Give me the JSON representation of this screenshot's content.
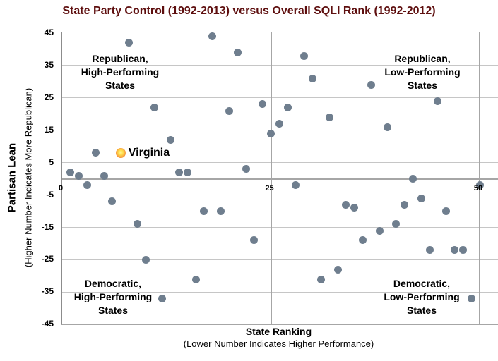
{
  "title": "State Party Control (1992-2013) versus Overall SQLI Rank (1992-2012)",
  "y_axis": {
    "title": "Partisan Lean",
    "subtitle": "(Higher Number Indicates More Republican)",
    "ticks": [
      45,
      35,
      25,
      15,
      5,
      -5,
      -15,
      -25,
      -35,
      -45
    ]
  },
  "x_axis": {
    "title": "State Ranking",
    "subtitle": "(Lower Number Indicates Higher Performance)",
    "ticks": [
      0,
      25,
      50
    ]
  },
  "quadrant_labels": {
    "top_left": "Republican,\nHigh-Performing\nStates",
    "top_right": "Republican,\nLow-Performing\nStates",
    "bottom_left": "Democratic,\nHigh-Performing\nStates",
    "bottom_right": "Democratic,\nLow-Performing\nStates"
  },
  "colors": {
    "title": "#5e0f0f",
    "dot": "#6f7e8e",
    "gridline": "#c6c6c6",
    "axis_line": "#a6a6a6",
    "highlight_outer": "#ee7d1a",
    "highlight_inner": "#ffe14d"
  },
  "chart_data": {
    "type": "scatter",
    "title": "State Party Control (1992-2013) versus Overall SQLI Rank (1992-2012)",
    "xlabel": "State Ranking (Lower Number Indicates Higher Performance)",
    "ylabel": "Partisan Lean (Higher Number Indicates More Republican)",
    "xlim": [
      0,
      52
    ],
    "ylim": [
      -45,
      45
    ],
    "grid": true,
    "legend": false,
    "points": [
      {
        "rank": 1,
        "lean": 2
      },
      {
        "rank": 2,
        "lean": 1
      },
      {
        "rank": 3,
        "lean": -2
      },
      {
        "rank": 4,
        "lean": 8
      },
      {
        "rank": 5,
        "lean": 1
      },
      {
        "rank": 6,
        "lean": -7
      },
      {
        "rank": 7,
        "lean": 8
      },
      {
        "rank": 8,
        "lean": 42
      },
      {
        "rank": 9,
        "lean": -14
      },
      {
        "rank": 10,
        "lean": -25
      },
      {
        "rank": 11,
        "lean": 22
      },
      {
        "rank": 12,
        "lean": -37
      },
      {
        "rank": 13,
        "lean": 12
      },
      {
        "rank": 14,
        "lean": 2
      },
      {
        "rank": 15,
        "lean": 2
      },
      {
        "rank": 16,
        "lean": -31
      },
      {
        "rank": 17,
        "lean": -10
      },
      {
        "rank": 18,
        "lean": 44
      },
      {
        "rank": 19,
        "lean": -10
      },
      {
        "rank": 20,
        "lean": 21
      },
      {
        "rank": 21,
        "lean": 39
      },
      {
        "rank": 22,
        "lean": 3
      },
      {
        "rank": 23,
        "lean": -19
      },
      {
        "rank": 24,
        "lean": 23
      },
      {
        "rank": 25,
        "lean": 14
      },
      {
        "rank": 26,
        "lean": 17
      },
      {
        "rank": 27,
        "lean": 22
      },
      {
        "rank": 28,
        "lean": -2
      },
      {
        "rank": 29,
        "lean": 38
      },
      {
        "rank": 30,
        "lean": 31
      },
      {
        "rank": 31,
        "lean": -31
      },
      {
        "rank": 32,
        "lean": 19
      },
      {
        "rank": 33,
        "lean": -28
      },
      {
        "rank": 34,
        "lean": -8
      },
      {
        "rank": 35,
        "lean": -9
      },
      {
        "rank": 36,
        "lean": -19
      },
      {
        "rank": 37,
        "lean": 29
      },
      {
        "rank": 38,
        "lean": -16
      },
      {
        "rank": 39,
        "lean": 16
      },
      {
        "rank": 40,
        "lean": -14
      },
      {
        "rank": 41,
        "lean": -8
      },
      {
        "rank": 42,
        "lean": 0
      },
      {
        "rank": 43,
        "lean": -6
      },
      {
        "rank": 44,
        "lean": -22
      },
      {
        "rank": 45,
        "lean": 24
      },
      {
        "rank": 46,
        "lean": -10
      },
      {
        "rank": 47,
        "lean": -22
      },
      {
        "rank": 48,
        "lean": -22
      },
      {
        "rank": 49,
        "lean": -37
      },
      {
        "rank": 50,
        "lean": -2
      }
    ],
    "highlight_point": {
      "label": "Virginia",
      "rank": 7,
      "lean": 8
    }
  }
}
